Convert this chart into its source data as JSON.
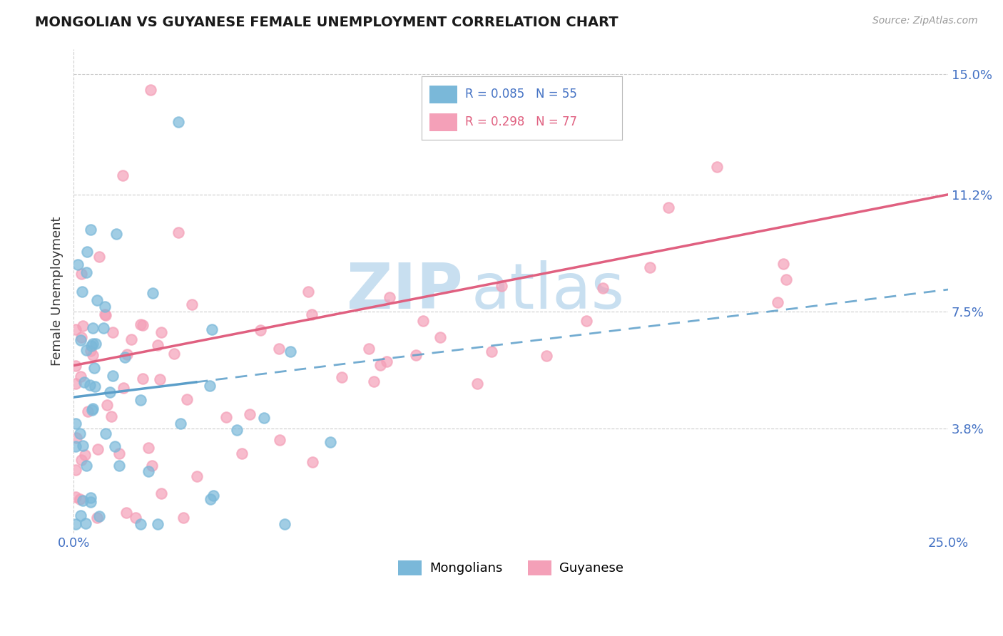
{
  "title": "MONGOLIAN VS GUYANESE FEMALE UNEMPLOYMENT CORRELATION CHART",
  "source": "Source: ZipAtlas.com",
  "ylabel": "Female Unemployment",
  "xlim": [
    0.0,
    0.25
  ],
  "ylim": [
    0.005,
    0.158
  ],
  "mongolian_color": "#7ab8d9",
  "guyanese_color": "#f4a0b8",
  "trend_mongolian_color": "#5b9ec9",
  "trend_guyanese_color": "#e06080",
  "mongolian_R": 0.085,
  "mongolian_N": 55,
  "guyanese_R": 0.298,
  "guyanese_N": 77,
  "legend_mongolian_label": "Mongolians",
  "legend_guyanese_label": "Guyanese",
  "ytick_positions": [
    0.038,
    0.075,
    0.112,
    0.15
  ],
  "ytick_labels": [
    "3.8%",
    "7.5%",
    "11.2%",
    "15.0%"
  ],
  "title_color": "#1a1a1a",
  "axis_label_color": "#333333",
  "tick_color": "#4472c4",
  "grid_color": "#cccccc",
  "watermark_color": "#c8dff0"
}
